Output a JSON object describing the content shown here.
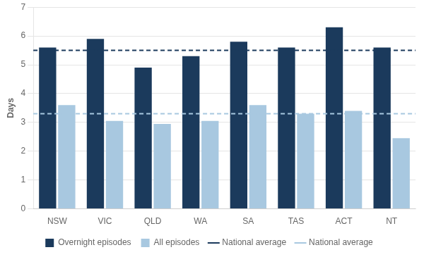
{
  "chart_data": {
    "type": "bar",
    "ylabel": "Days",
    "categories": [
      "NSW",
      "VIC",
      "QLD",
      "WA",
      "SA",
      "TAS",
      "ACT",
      "NT"
    ],
    "series": [
      {
        "name": "Overnight episodes",
        "color": "#1B3A5C",
        "values": [
          5.6,
          5.9,
          4.9,
          5.3,
          5.8,
          5.6,
          6.3,
          5.6
        ]
      },
      {
        "name": "All episodes",
        "color": "#A8C8E0",
        "values": [
          3.6,
          3.05,
          2.95,
          3.05,
          3.6,
          3.3,
          3.4,
          2.45
        ]
      }
    ],
    "reference_lines": [
      {
        "name": "National average",
        "value": 5.5,
        "color": "#1B3A5C",
        "line_style": "dashed"
      },
      {
        "name": "National average",
        "value": 3.3,
        "color": "#A8C8E0",
        "line_style": "dashed"
      }
    ],
    "ylim": [
      0,
      7
    ],
    "yticks": [
      0,
      1,
      2,
      3,
      4,
      5,
      6,
      7
    ],
    "grid": true,
    "legend": "bottom"
  }
}
